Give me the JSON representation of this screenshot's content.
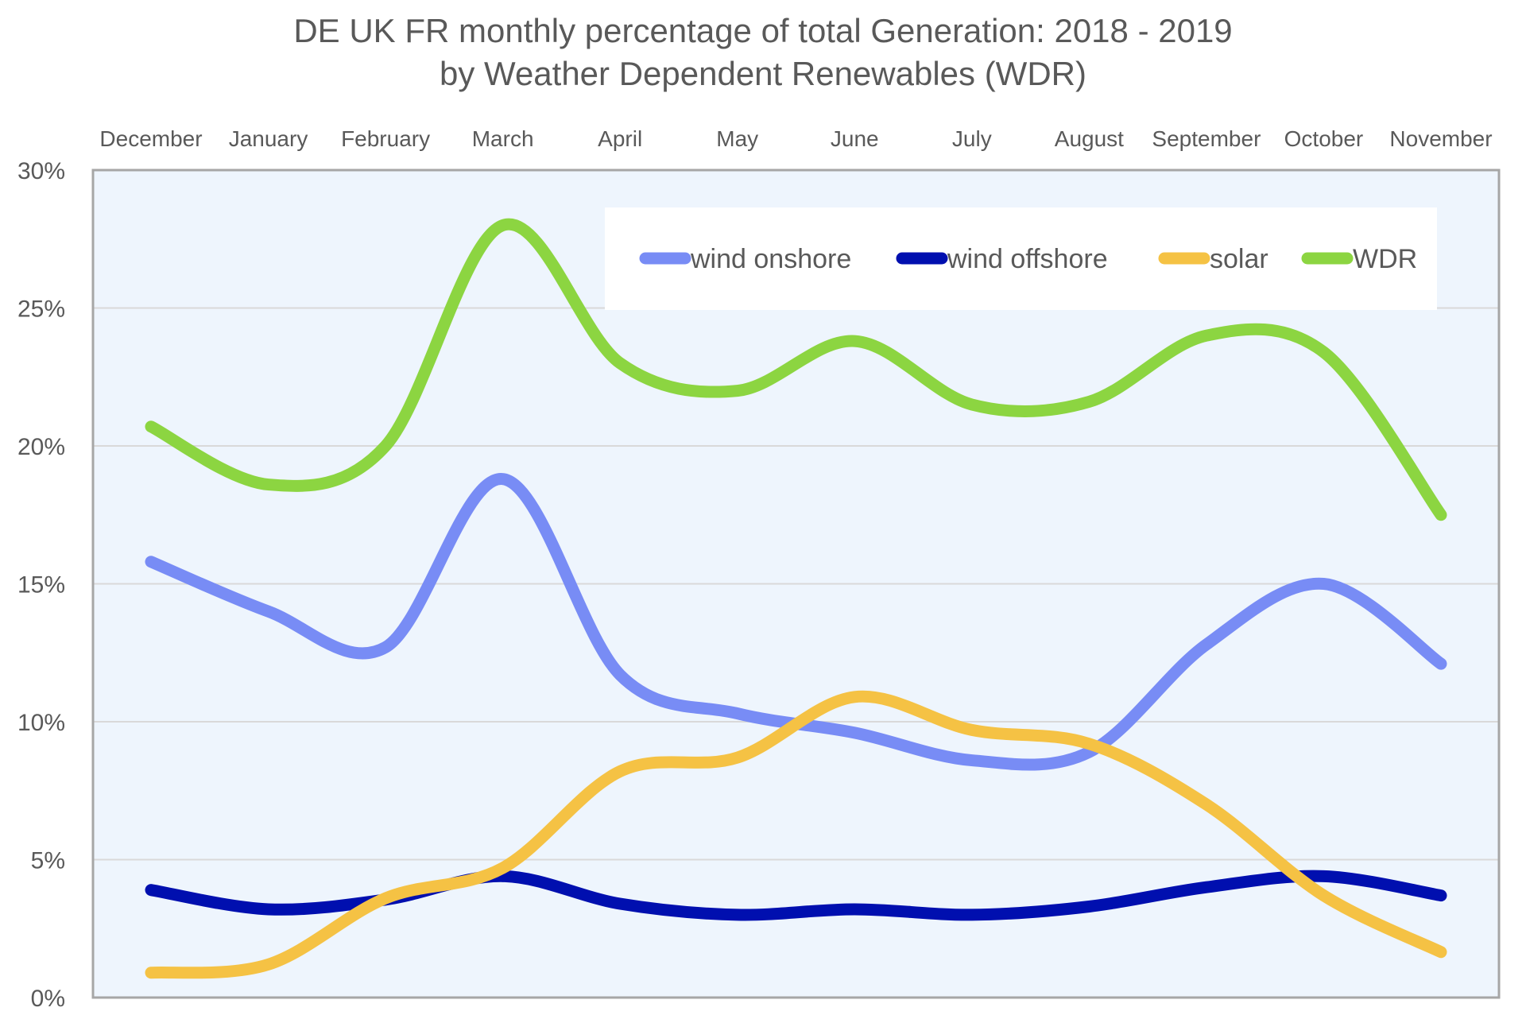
{
  "chart_data": {
    "type": "line",
    "title": "DE UK FR monthly percentage of total Generation: 2018 - 2019",
    "subtitle": "by Weather Dependent Renewables (WDR)",
    "xlabel": "",
    "ylabel": "",
    "x_axis_position": "top",
    "categories": [
      "December",
      "January",
      "February",
      "March",
      "April",
      "May",
      "June",
      "July",
      "August",
      "September",
      "October",
      "November"
    ],
    "ylim": [
      0,
      30
    ],
    "yticks": [
      0,
      5,
      10,
      15,
      20,
      25,
      30
    ],
    "ytick_labels": [
      "0%",
      "5%",
      "10%",
      "15%",
      "20%",
      "25%",
      "30%"
    ],
    "grid": true,
    "smoothed": true,
    "legend_position": "top-right",
    "series": [
      {
        "name": "wind onshore",
        "color": "#788CF5",
        "values": [
          15.8,
          14.0,
          12.7,
          18.8,
          11.7,
          10.3,
          9.6,
          8.6,
          8.9,
          12.8,
          15.0,
          12.1
        ]
      },
      {
        "name": "wind offshore",
        "color": "#000FAF",
        "values": [
          3.9,
          3.2,
          3.55,
          4.4,
          3.4,
          3.0,
          3.2,
          3.0,
          3.3,
          4.0,
          4.4,
          3.7
        ]
      },
      {
        "name": "solar",
        "color": "#F5C244",
        "values": [
          0.9,
          1.2,
          3.6,
          4.7,
          8.2,
          8.7,
          10.9,
          9.7,
          9.2,
          7.0,
          3.7,
          1.65
        ]
      },
      {
        "name": "WDR",
        "color": "#8CD541",
        "values": [
          20.7,
          18.6,
          20.0,
          28.0,
          23.0,
          22.0,
          23.8,
          21.5,
          21.6,
          24.0,
          23.4,
          17.5
        ]
      }
    ]
  },
  "colors": {
    "plot_background": "#EEF5FD",
    "plot_border": "#A6A6A6",
    "gridline": "#D9D9D9",
    "text": "#595959"
  }
}
